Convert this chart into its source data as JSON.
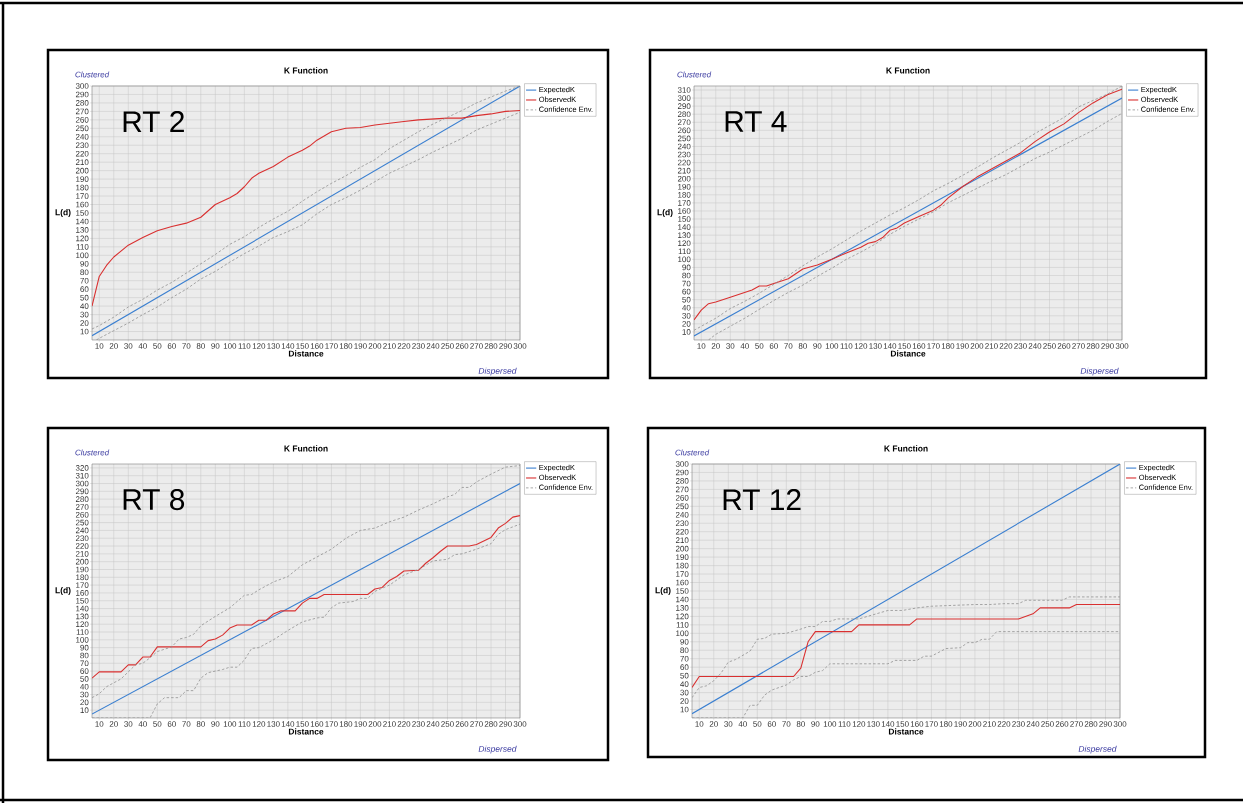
{
  "chart_data": [
    {
      "type": "line",
      "title": "K Function",
      "xlabel": "Distance",
      "ylabel": "L(d)",
      "annotations": [
        "RT 2",
        "Clustered",
        "Dispersed"
      ],
      "xlim": [
        5,
        300
      ],
      "ylim": [
        0,
        300
      ],
      "xticks": [
        10,
        20,
        30,
        40,
        50,
        60,
        70,
        80,
        90,
        100,
        110,
        120,
        130,
        140,
        150,
        160,
        170,
        180,
        190,
        200,
        210,
        220,
        230,
        240,
        250,
        260,
        270,
        280,
        290,
        300
      ],
      "yticks": [
        10,
        20,
        30,
        40,
        50,
        60,
        70,
        80,
        90,
        100,
        110,
        120,
        130,
        140,
        150,
        160,
        170,
        180,
        190,
        200,
        210,
        220,
        230,
        240,
        250,
        260,
        270,
        280,
        290,
        300
      ],
      "grid": true,
      "legend": "right",
      "series": [
        {
          "name": "ExpectedK",
          "color": "#3a7fd0",
          "x": [
            5,
            300
          ],
          "values": [
            5,
            300
          ]
        },
        {
          "name": "ObservedK",
          "color": "#d93030",
          "x": [
            5,
            10,
            15,
            20,
            30,
            40,
            50,
            60,
            70,
            80,
            90,
            100,
            105,
            110,
            115,
            120,
            130,
            140,
            150,
            155,
            160,
            170,
            180,
            190,
            200,
            210,
            220,
            230,
            240,
            250,
            260,
            270,
            280,
            290,
            300
          ],
          "values": [
            40,
            75,
            88,
            98,
            112,
            121,
            129,
            134,
            138,
            145,
            160,
            168,
            173,
            181,
            191,
            197,
            205,
            216,
            224,
            229,
            236,
            246,
            250,
            251,
            254,
            256,
            258,
            260,
            261,
            262,
            262,
            265,
            267,
            270,
            271
          ]
        },
        {
          "name": "Confidence Env.",
          "color": "#909090",
          "line_style": "dashed",
          "x": [
            5,
            10,
            20,
            30,
            40,
            50,
            60,
            70,
            80,
            90,
            100,
            110,
            120,
            130,
            140,
            150,
            160,
            170,
            180,
            190,
            200,
            210,
            220,
            230,
            240,
            250,
            260,
            270,
            280,
            290,
            300
          ],
          "values": [
            13,
            17,
            27,
            39,
            48,
            59,
            68,
            79,
            90,
            101,
            113,
            122,
            133,
            143,
            152,
            164,
            175,
            185,
            194,
            204,
            213,
            226,
            236,
            246,
            255,
            263,
            271,
            280,
            287,
            294,
            300
          ]
        },
        {
          "color": "#909090",
          "line_style": "dashed",
          "x": [
            8,
            10,
            20,
            30,
            40,
            50,
            60,
            70,
            80,
            90,
            100,
            110,
            120,
            130,
            140,
            150,
            160,
            170,
            180,
            190,
            200,
            210,
            220,
            230,
            240,
            250,
            260,
            270,
            280,
            290,
            300
          ],
          "values": [
            0,
            2,
            11,
            20,
            30,
            39,
            50,
            60,
            72,
            81,
            92,
            102,
            111,
            121,
            128,
            136,
            149,
            160,
            168,
            177,
            187,
            197,
            205,
            213,
            222,
            230,
            238,
            248,
            255,
            262,
            269
          ]
        }
      ]
    },
    {
      "type": "line",
      "title": "K Function",
      "xlabel": "Distance",
      "ylabel": "L(d)",
      "annotations": [
        "RT 4",
        "Clustered",
        "Dispersed"
      ],
      "xlim": [
        5,
        300
      ],
      "ylim": [
        0,
        315
      ],
      "xticks": [
        10,
        20,
        30,
        40,
        50,
        60,
        70,
        80,
        90,
        100,
        110,
        120,
        130,
        140,
        150,
        160,
        170,
        180,
        190,
        200,
        210,
        220,
        230,
        240,
        250,
        260,
        270,
        280,
        290,
        300
      ],
      "yticks": [
        10,
        20,
        30,
        40,
        50,
        60,
        70,
        80,
        90,
        100,
        110,
        120,
        130,
        140,
        150,
        160,
        170,
        180,
        190,
        200,
        210,
        220,
        230,
        240,
        250,
        260,
        270,
        280,
        290,
        300,
        310
      ],
      "grid": true,
      "legend": "right",
      "series": [
        {
          "name": "ExpectedK",
          "color": "#3a7fd0",
          "x": [
            5,
            300
          ],
          "values": [
            5,
            300
          ]
        },
        {
          "name": "ObservedK",
          "color": "#d93030",
          "x": [
            5,
            10,
            15,
            20,
            30,
            40,
            45,
            50,
            55,
            60,
            70,
            80,
            90,
            100,
            110,
            120,
            125,
            130,
            135,
            140,
            145,
            150,
            160,
            170,
            175,
            180,
            190,
            200,
            210,
            220,
            230,
            240,
            250,
            260,
            270,
            280,
            290,
            300
          ],
          "values": [
            25,
            37,
            45,
            47,
            53,
            59,
            62,
            67,
            67,
            70,
            76,
            88,
            93,
            100,
            108,
            115,
            120,
            122,
            127,
            136,
            139,
            145,
            153,
            161,
            167,
            176,
            190,
            202,
            212,
            222,
            232,
            246,
            258,
            268,
            282,
            294,
            304,
            311
          ]
        },
        {
          "name": "Confidence Env.",
          "color": "#909090",
          "line_style": "dashed",
          "x": [
            5,
            10,
            20,
            30,
            40,
            50,
            60,
            70,
            80,
            90,
            100,
            110,
            120,
            130,
            140,
            150,
            160,
            170,
            180,
            190,
            200,
            210,
            220,
            230,
            240,
            250,
            260,
            270,
            280,
            290,
            300
          ],
          "values": [
            12,
            17,
            27,
            39,
            48,
            58,
            69,
            80,
            92,
            103,
            113,
            124,
            135,
            145,
            155,
            164,
            174,
            185,
            194,
            204,
            214,
            225,
            235,
            245,
            256,
            266,
            276,
            289,
            297,
            305,
            315
          ]
        },
        {
          "color": "#909090",
          "line_style": "dashed",
          "x": [
            15,
            20,
            30,
            40,
            50,
            60,
            70,
            80,
            90,
            100,
            110,
            120,
            130,
            140,
            150,
            160,
            170,
            180,
            190,
            200,
            210,
            220,
            230,
            240,
            250,
            260,
            270,
            280,
            290,
            300
          ],
          "values": [
            0,
            7,
            17,
            27,
            38,
            49,
            59,
            68,
            79,
            89,
            100,
            109,
            119,
            131,
            141,
            150,
            159,
            170,
            179,
            188,
            197,
            205,
            215,
            225,
            233,
            242,
            251,
            260,
            271,
            281
          ]
        }
      ]
    },
    {
      "type": "line",
      "title": "K Function",
      "xlabel": "Distance",
      "ylabel": "L(d)",
      "annotations": [
        "RT 8",
        "Clustered",
        "Dispersed"
      ],
      "xlim": [
        5,
        300
      ],
      "ylim": [
        0,
        325
      ],
      "xticks": [
        10,
        20,
        30,
        40,
        50,
        60,
        70,
        80,
        90,
        100,
        110,
        120,
        130,
        140,
        150,
        160,
        170,
        180,
        190,
        200,
        210,
        220,
        230,
        240,
        250,
        260,
        270,
        280,
        290,
        300
      ],
      "yticks": [
        10,
        20,
        30,
        40,
        50,
        60,
        70,
        80,
        90,
        100,
        110,
        120,
        130,
        140,
        150,
        160,
        170,
        180,
        190,
        200,
        210,
        220,
        230,
        240,
        250,
        260,
        270,
        280,
        290,
        300,
        310,
        320
      ],
      "grid": true,
      "legend": "right",
      "series": [
        {
          "name": "ExpectedK",
          "color": "#3a7fd0",
          "x": [
            5,
            300
          ],
          "values": [
            5,
            300
          ]
        },
        {
          "name": "ObservedK",
          "color": "#d93030",
          "x": [
            5,
            10,
            25,
            30,
            35,
            40,
            45,
            50,
            80,
            85,
            90,
            95,
            100,
            105,
            115,
            120,
            125,
            130,
            135,
            145,
            150,
            155,
            160,
            165,
            195,
            200,
            205,
            210,
            215,
            220,
            230,
            235,
            240,
            245,
            250,
            265,
            270,
            280,
            285,
            290,
            295,
            300
          ],
          "values": [
            51,
            59,
            59,
            68,
            68,
            78,
            78,
            91,
            91,
            99,
            101,
            106,
            115,
            119,
            119,
            125,
            125,
            133,
            137,
            137,
            147,
            153,
            153,
            158,
            158,
            165,
            167,
            176,
            181,
            188,
            189,
            198,
            205,
            213,
            220,
            220,
            222,
            231,
            243,
            249,
            257,
            259
          ]
        },
        {
          "name": "Confidence Env.",
          "color": "#909090",
          "line_style": "dashed",
          "x": [
            5,
            10,
            15,
            20,
            25,
            30,
            35,
            40,
            45,
            50,
            55,
            60,
            65,
            70,
            75,
            80,
            90,
            100,
            110,
            115,
            120,
            130,
            140,
            150,
            160,
            170,
            180,
            190,
            200,
            210,
            220,
            230,
            240,
            250,
            255,
            260,
            265,
            270,
            280,
            290,
            300
          ],
          "values": [
            26,
            31,
            40,
            45,
            50,
            59,
            68,
            70,
            77,
            85,
            88,
            91,
            101,
            103,
            107,
            118,
            130,
            141,
            157,
            158,
            164,
            174,
            181,
            196,
            206,
            216,
            230,
            240,
            243,
            251,
            257,
            266,
            274,
            283,
            286,
            295,
            295,
            302,
            312,
            321,
            323
          ]
        },
        {
          "color": "#909090",
          "line_style": "dashed",
          "x": [
            5,
            45,
            50,
            55,
            65,
            70,
            75,
            80,
            85,
            90,
            95,
            100,
            105,
            110,
            115,
            120,
            130,
            140,
            150,
            160,
            165,
            170,
            175,
            185,
            190,
            195,
            200,
            210,
            220,
            230,
            240,
            250,
            255,
            260,
            270,
            280,
            285,
            290,
            300
          ],
          "values": [
            0,
            0,
            18,
            26,
            26,
            35,
            35,
            51,
            58,
            60,
            62,
            65,
            65,
            74,
            89,
            90,
            100,
            112,
            123,
            128,
            129,
            141,
            147,
            149,
            153,
            153,
            162,
            170,
            183,
            190,
            201,
            203,
            209,
            210,
            216,
            223,
            235,
            241,
            248
          ]
        }
      ]
    },
    {
      "type": "line",
      "title": "K Function",
      "xlabel": "Distance",
      "ylabel": "L(d)",
      "annotations": [
        "RT 12",
        "Clustered",
        "Dispersed"
      ],
      "xlim": [
        5,
        300
      ],
      "ylim": [
        0,
        300
      ],
      "xticks": [
        10,
        20,
        30,
        40,
        50,
        60,
        70,
        80,
        90,
        100,
        110,
        120,
        130,
        140,
        150,
        160,
        170,
        180,
        190,
        200,
        210,
        220,
        230,
        240,
        250,
        260,
        270,
        280,
        290,
        300
      ],
      "yticks": [
        10,
        20,
        30,
        40,
        50,
        60,
        70,
        80,
        90,
        100,
        110,
        120,
        130,
        140,
        150,
        160,
        170,
        180,
        190,
        200,
        210,
        220,
        230,
        240,
        250,
        260,
        270,
        280,
        290,
        300
      ],
      "grid": true,
      "legend": "right",
      "series": [
        {
          "name": "ExpectedK",
          "color": "#3a7fd0",
          "x": [
            5,
            300
          ],
          "values": [
            5,
            300
          ]
        },
        {
          "name": "ObservedK",
          "color": "#d93030",
          "x": [
            5,
            10,
            75,
            80,
            85,
            90,
            115,
            120,
            155,
            160,
            230,
            240,
            245,
            265,
            270,
            300
          ],
          "values": [
            36,
            49,
            49,
            59,
            90,
            102,
            102,
            110,
            110,
            117,
            117,
            123,
            130,
            130,
            134,
            134
          ]
        },
        {
          "name": "Confidence Env.",
          "color": "#909090",
          "line_style": "dashed",
          "x": [
            5,
            10,
            15,
            20,
            25,
            30,
            35,
            40,
            45,
            50,
            55,
            60,
            70,
            80,
            85,
            90,
            95,
            100,
            105,
            120,
            130,
            140,
            150,
            160,
            170,
            185,
            200,
            210,
            220,
            230,
            235,
            260,
            265,
            300
          ],
          "values": [
            24,
            36,
            38,
            44,
            53,
            66,
            69,
            74,
            79,
            93,
            94,
            99,
            100,
            105,
            108,
            108,
            114,
            114,
            117,
            117,
            122,
            127,
            127,
            130,
            132,
            133,
            134,
            134,
            135,
            135,
            139,
            139,
            143,
            143
          ]
        },
        {
          "color": "#909090",
          "line_style": "dashed",
          "x": [
            5,
            40,
            45,
            50,
            55,
            60,
            65,
            70,
            75,
            80,
            85,
            90,
            95,
            100,
            140,
            145,
            160,
            165,
            170,
            180,
            190,
            195,
            200,
            205,
            210,
            215,
            300
          ],
          "values": [
            0,
            0,
            15,
            15,
            27,
            33,
            36,
            39,
            45,
            49,
            49,
            54,
            56,
            64,
            64,
            68,
            68,
            73,
            73,
            82,
            83,
            89,
            89,
            93,
            93,
            102,
            102
          ]
        }
      ]
    }
  ]
}
